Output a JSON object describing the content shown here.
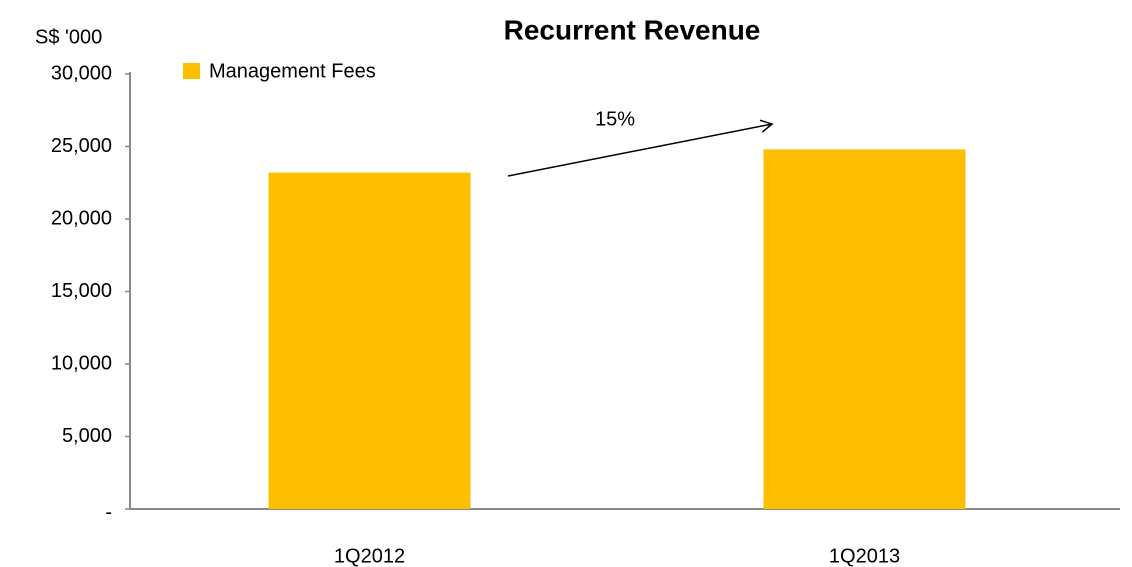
{
  "chart_data": {
    "type": "bar",
    "title": "Recurrent Revenue",
    "ylabel": "S$ '000",
    "categories": [
      "1Q2012",
      "1Q2013"
    ],
    "series": [
      {
        "name": "Management Fees",
        "color": "#fdbf00",
        "values": [
          23200,
          24800
        ]
      }
    ],
    "ylim": [
      0,
      30000
    ],
    "yticks": [
      {
        "value": 0,
        "label": "-"
      },
      {
        "value": 5000,
        "label": "5,000"
      },
      {
        "value": 10000,
        "label": "10,000"
      },
      {
        "value": 15000,
        "label": "15,000"
      },
      {
        "value": 20000,
        "label": "20,000"
      },
      {
        "value": 25000,
        "label": "25,000"
      },
      {
        "value": 30000,
        "label": "30,000"
      }
    ],
    "grid": false,
    "legend": "top-left",
    "annotations": [
      {
        "text": "15%"
      }
    ]
  }
}
